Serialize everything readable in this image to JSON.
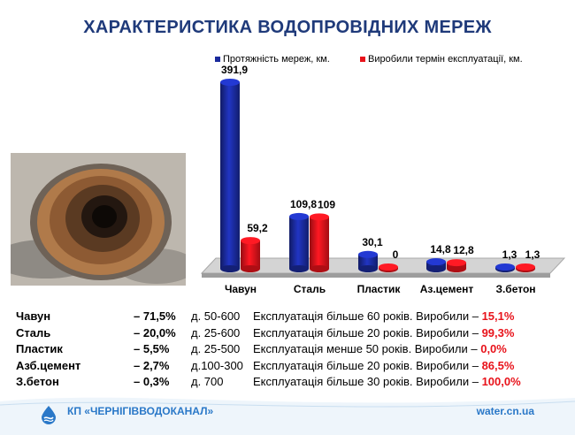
{
  "title": "ХАРАКТЕРИСТИКА ВОДОПРОВІДНИХ МЕРЕЖ",
  "chart_data": {
    "type": "bar",
    "categories": [
      "Чавун",
      "Сталь",
      "Пластик",
      "Аз.цемент",
      "З.бетон"
    ],
    "series": [
      {
        "name": "Протяжність мереж, км.",
        "color": "#1a2a9c",
        "values": [
          391.9,
          109.8,
          30.1,
          14.8,
          1.3
        ],
        "labels": [
          "391,9",
          "109,8",
          "30,1",
          "14,8",
          "1,3"
        ]
      },
      {
        "name": "Виробили термін експлуатації, км.",
        "color": "#e8131b",
        "values": [
          59.2,
          109,
          0,
          12.8,
          1.3
        ],
        "labels": [
          "59,2",
          "109",
          "0",
          "12,8",
          "1,3"
        ]
      }
    ],
    "legend": "top",
    "grid": false,
    "ylim": [
      0,
      400
    ]
  },
  "rows": [
    {
      "material": "Чавун",
      "percent": "– 71,5%",
      "diameter": "д. 50-600",
      "info": "Експлуатація більше 60 років. Виробили – ",
      "worn": "15,1%"
    },
    {
      "material": "Сталь",
      "percent": "– 20,0%",
      "diameter": "д. 25-600",
      "info": "Експлуатація більше 20 років. Виробили – ",
      "worn": "99,3%"
    },
    {
      "material": "Пластик",
      "percent": "– 5,5%",
      "diameter": "д. 25-500",
      "info": "Експлуатація менше 50 років.  Виробили – ",
      "worn": "0,0%"
    },
    {
      "material": "Азб.цемент",
      "percent": "– 2,7%",
      "diameter": "д.100-300",
      "info": "Експлуатація більше 20 років. Виробили – ",
      "worn": "86,5%"
    },
    {
      "material": "З.бетон",
      "percent": "– 0,3%",
      "diameter": "д. 700",
      "info": "Експлуатація більше 30 років. Виробили – ",
      "worn": "100,0%"
    }
  ],
  "footer": {
    "company": "КП «ЧЕРНІГІВВОДОКАНАЛ»",
    "website": "water.cn.ua",
    "logo_icon": "water-drop-logo-icon"
  }
}
